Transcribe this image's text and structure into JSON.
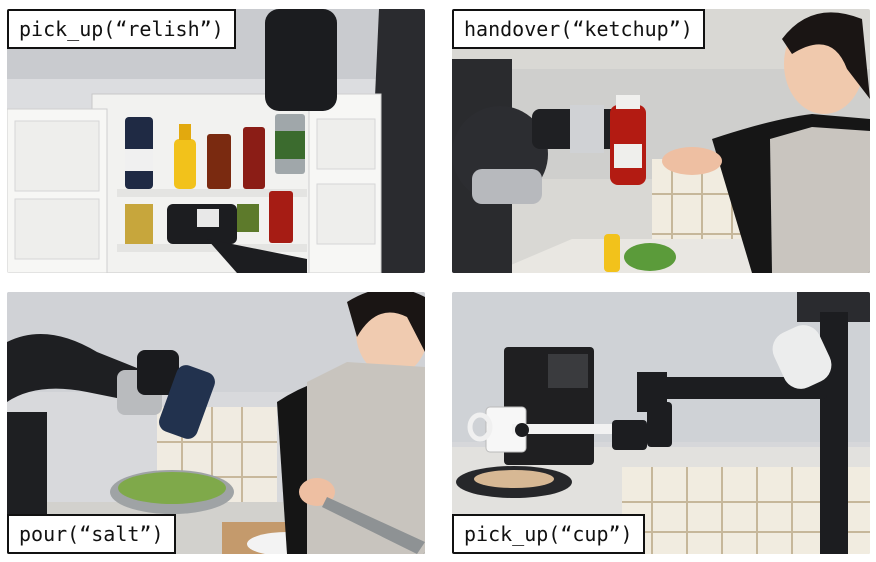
{
  "panels": [
    {
      "caption": "pick_up(“relish”)"
    },
    {
      "caption": "handover(“ketchup”)"
    },
    {
      "caption": "pour(“salt”)"
    },
    {
      "caption": "pick_up(“cup”)"
    }
  ]
}
